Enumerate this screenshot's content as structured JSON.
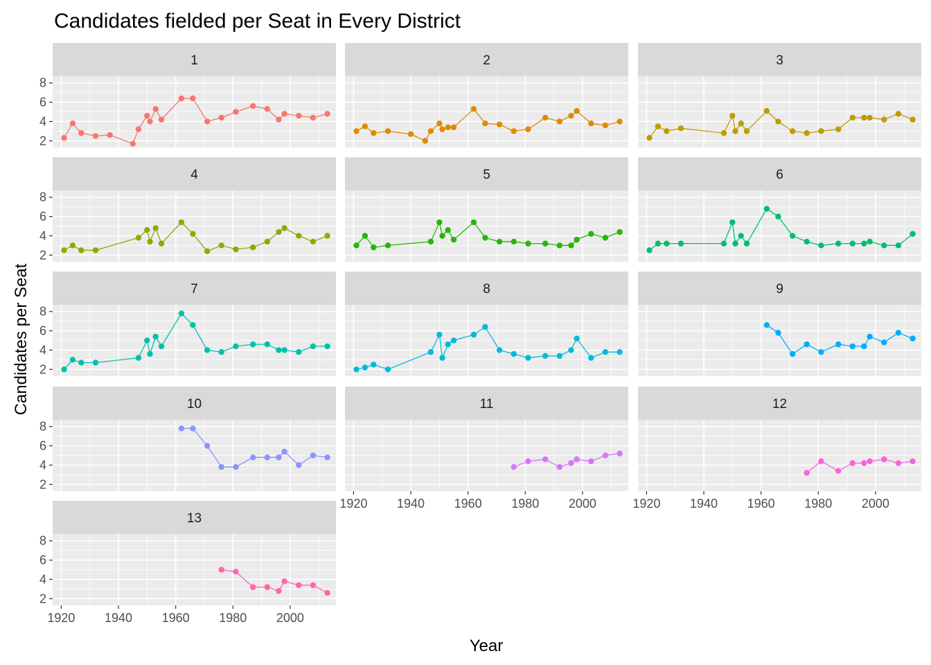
{
  "chart_data": {
    "type": "line",
    "title": "Candidates fielded per Seat in Every District",
    "xlabel": "Year",
    "ylabel": "Candidates per Seat",
    "xlim": [
      1917,
      2016
    ],
    "ylim": [
      1.3,
      8.7
    ],
    "x_ticks": [
      1920,
      1940,
      1960,
      1980,
      2000
    ],
    "y_ticks": [
      2,
      4,
      6,
      8
    ],
    "grid": true,
    "legend": "none",
    "facet_layout": "wrap, 3 columns",
    "background_color": "#EBEBEB",
    "strip_color": "#D9D9D9",
    "series": [
      {
        "name": "1",
        "color": "#F8766D",
        "x": [
          1921,
          1924,
          1927,
          1932,
          1937,
          1945,
          1947,
          1950,
          1951,
          1953,
          1955,
          1962,
          1966,
          1971,
          1976,
          1981,
          1987,
          1992,
          1996,
          1998,
          2003,
          2008,
          2013
        ],
        "y": [
          2.3,
          3.8,
          2.8,
          2.5,
          2.6,
          1.7,
          3.2,
          4.6,
          4.0,
          5.3,
          4.2,
          6.4,
          6.4,
          4.0,
          4.4,
          5.0,
          5.6,
          5.3,
          4.2,
          4.8,
          4.6,
          4.4,
          4.8
        ]
      },
      {
        "name": "2",
        "color": "#E18A00",
        "x": [
          1921,
          1924,
          1927,
          1932,
          1940,
          1945,
          1947,
          1950,
          1951,
          1953,
          1955,
          1962,
          1966,
          1971,
          1976,
          1981,
          1987,
          1992,
          1996,
          1998,
          2003,
          2008,
          2013
        ],
        "y": [
          3.0,
          3.5,
          2.8,
          3.0,
          2.7,
          2.0,
          3.0,
          3.8,
          3.2,
          3.4,
          3.4,
          5.3,
          3.8,
          3.7,
          3.0,
          3.2,
          4.4,
          4.0,
          4.6,
          5.1,
          3.8,
          3.6,
          4.0
        ]
      },
      {
        "name": "3",
        "color": "#BE9C00",
        "x": [
          1921,
          1924,
          1927,
          1932,
          1947,
          1950,
          1951,
          1953,
          1955,
          1962,
          1966,
          1971,
          1976,
          1981,
          1987,
          1992,
          1996,
          1998,
          2003,
          2008,
          2013
        ],
        "y": [
          2.3,
          3.5,
          3.0,
          3.3,
          2.8,
          4.6,
          3.0,
          3.8,
          3.0,
          5.1,
          4.0,
          3.0,
          2.8,
          3.0,
          3.2,
          4.4,
          4.4,
          4.4,
          4.2,
          4.8,
          4.2
        ]
      },
      {
        "name": "4",
        "color": "#8CAB00",
        "x": [
          1921,
          1924,
          1927,
          1932,
          1947,
          1950,
          1951,
          1953,
          1955,
          1962,
          1966,
          1971,
          1976,
          1981,
          1987,
          1992,
          1996,
          1998,
          2003,
          2008,
          2013
        ],
        "y": [
          2.5,
          3.0,
          2.5,
          2.5,
          3.8,
          4.6,
          3.4,
          4.8,
          3.2,
          5.4,
          4.2,
          2.4,
          3.0,
          2.6,
          2.8,
          3.4,
          4.4,
          4.8,
          4.0,
          3.4,
          4.0
        ]
      },
      {
        "name": "5",
        "color": "#24B700",
        "x": [
          1921,
          1924,
          1927,
          1932,
          1947,
          1950,
          1951,
          1953,
          1955,
          1962,
          1966,
          1971,
          1976,
          1981,
          1987,
          1992,
          1996,
          1998,
          2003,
          2008,
          2013
        ],
        "y": [
          3.0,
          4.0,
          2.8,
          3.0,
          3.4,
          5.4,
          4.0,
          4.6,
          3.6,
          5.4,
          3.8,
          3.4,
          3.4,
          3.2,
          3.2,
          3.0,
          3.0,
          3.6,
          4.2,
          3.8,
          4.4
        ]
      },
      {
        "name": "6",
        "color": "#00BE70",
        "x": [
          1921,
          1924,
          1927,
          1932,
          1947,
          1950,
          1951,
          1953,
          1955,
          1962,
          1966,
          1971,
          1976,
          1981,
          1987,
          1992,
          1996,
          1998,
          2003,
          2008,
          2013
        ],
        "y": [
          2.5,
          3.2,
          3.2,
          3.2,
          3.2,
          5.4,
          3.2,
          4.0,
          3.2,
          6.8,
          6.0,
          4.0,
          3.4,
          3.0,
          3.2,
          3.2,
          3.2,
          3.4,
          3.0,
          3.0,
          4.2
        ]
      },
      {
        "name": "7",
        "color": "#00C1AB",
        "x": [
          1921,
          1924,
          1927,
          1932,
          1947,
          1950,
          1951,
          1953,
          1955,
          1962,
          1966,
          1971,
          1976,
          1981,
          1987,
          1992,
          1996,
          1998,
          2003,
          2008,
          2013
        ],
        "y": [
          2.0,
          3.0,
          2.7,
          2.7,
          3.2,
          5.0,
          3.6,
          5.4,
          4.4,
          7.8,
          6.6,
          4.0,
          3.8,
          4.4,
          4.6,
          4.6,
          4.0,
          4.0,
          3.8,
          4.4,
          4.4
        ]
      },
      {
        "name": "8",
        "color": "#00BBDA",
        "x": [
          1921,
          1924,
          1927,
          1932,
          1947,
          1950,
          1951,
          1953,
          1955,
          1962,
          1966,
          1971,
          1976,
          1981,
          1987,
          1992,
          1996,
          1998,
          2003,
          2008,
          2013
        ],
        "y": [
          2.0,
          2.2,
          2.5,
          2.0,
          3.8,
          5.6,
          3.2,
          4.6,
          5.0,
          5.6,
          6.4,
          4.0,
          3.6,
          3.2,
          3.4,
          3.4,
          4.0,
          5.2,
          3.2,
          3.8,
          3.8
        ]
      },
      {
        "name": "9",
        "color": "#00ACFC",
        "x": [
          1962,
          1966,
          1971,
          1976,
          1981,
          1987,
          1992,
          1996,
          1998,
          2003,
          2008,
          2013
        ],
        "y": [
          6.6,
          5.8,
          3.6,
          4.6,
          3.8,
          4.6,
          4.4,
          4.4,
          5.4,
          4.8,
          5.8,
          5.2
        ]
      },
      {
        "name": "10",
        "color": "#8B93FF",
        "x": [
          1962,
          1966,
          1971,
          1976,
          1981,
          1987,
          1992,
          1996,
          1998,
          2003,
          2008,
          2013
        ],
        "y": [
          7.8,
          7.8,
          6.0,
          3.8,
          3.8,
          4.8,
          4.8,
          4.8,
          5.4,
          4.0,
          5.0,
          4.8
        ]
      },
      {
        "name": "11",
        "color": "#D575FE",
        "x": [
          1976,
          1981,
          1987,
          1992,
          1996,
          1998,
          2003,
          2008,
          2013
        ],
        "y": [
          3.8,
          4.4,
          4.6,
          3.8,
          4.2,
          4.6,
          4.4,
          5.0,
          5.2
        ]
      },
      {
        "name": "12",
        "color": "#F962DD",
        "x": [
          1976,
          1981,
          1987,
          1992,
          1996,
          1998,
          2003,
          2008,
          2013
        ],
        "y": [
          3.2,
          4.4,
          3.4,
          4.2,
          4.2,
          4.4,
          4.6,
          4.2,
          4.4
        ]
      },
      {
        "name": "13",
        "color": "#FF65AC",
        "x": [
          1976,
          1981,
          1987,
          1992,
          1996,
          1998,
          2003,
          2008,
          2013
        ],
        "y": [
          5.0,
          4.8,
          3.2,
          3.2,
          2.8,
          3.8,
          3.4,
          3.4,
          2.6
        ]
      }
    ]
  }
}
